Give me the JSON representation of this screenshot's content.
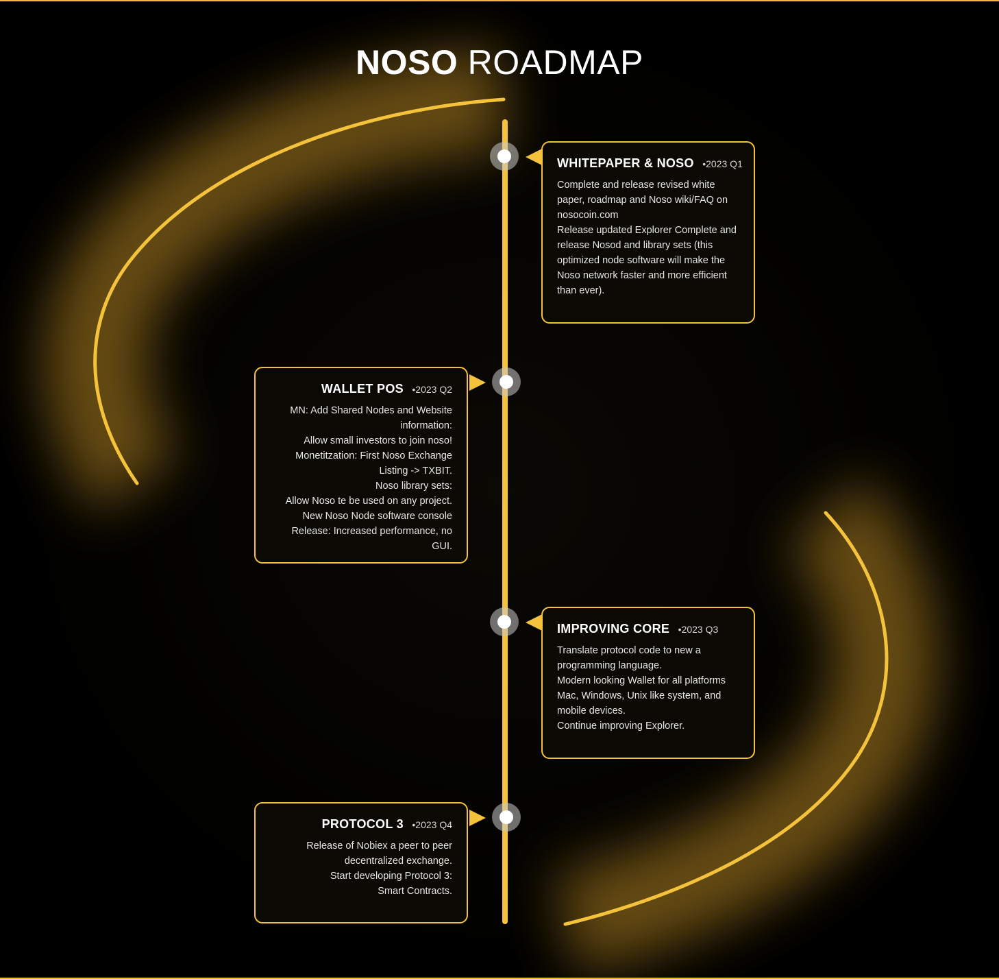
{
  "header": {
    "title_bold": "NOSO",
    "title_light": "ROADMAP"
  },
  "colors": {
    "accent": "#f5c33b",
    "background": "#000000",
    "card_fill": "#0c0a05"
  },
  "milestones": [
    {
      "name": "WHITEPAPER & NOSO",
      "date": "2023 Q1",
      "side": "right",
      "lines": [
        "Complete and release revised white",
        "paper, roadmap and Noso wiki/FAQ on",
        "nosocoin.com",
        "Release updated Explorer Complete and",
        "release Nosod and library sets (this",
        "optimized node software will make the",
        "Noso network faster and more efficient",
        "than ever)."
      ]
    },
    {
      "name": "WALLET POS",
      "date": "2023 Q2",
      "side": "left",
      "lines": [
        "MN: Add Shared Nodes and Website",
        "information:",
        "Allow small investors to join noso!",
        "Monetitzation: First Noso Exchange",
        "Listing -> TXBIT.",
        "Noso library sets:",
        "Allow Noso te be used on any project.",
        "New Noso Node software console",
        "Release: Increased performance, no GUI."
      ]
    },
    {
      "name": "IMPROVING CORE",
      "date": "2023 Q3",
      "side": "right",
      "lines": [
        "Translate protocol code to new a",
        "programming language.",
        "Modern looking Wallet for all platforms",
        "Mac, Windows, Unix like system, and",
        "mobile devices.",
        "Continue improving Explorer."
      ]
    },
    {
      "name": "PROTOCOL 3",
      "date": "2023 Q4",
      "side": "left",
      "lines": [
        "Release of Nobiex a peer to peer",
        "decentralized exchange.",
        "Start developing Protocol 3:",
        "Smart Contracts."
      ]
    }
  ]
}
